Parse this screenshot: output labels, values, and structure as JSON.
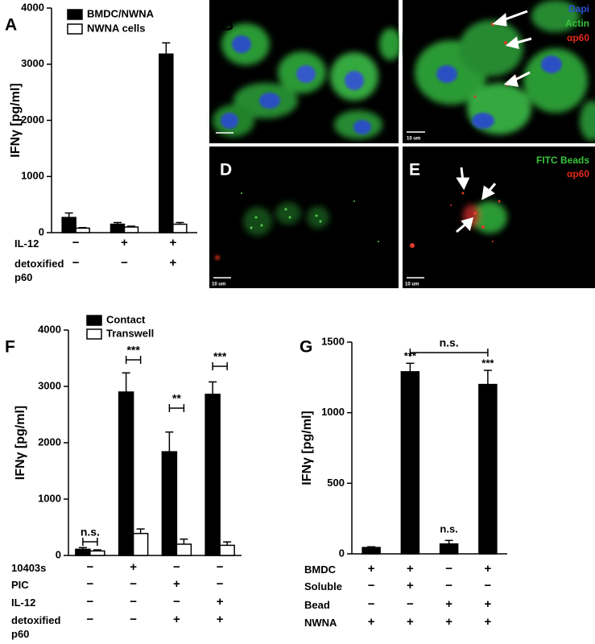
{
  "chart_data": [
    {
      "type": "bar",
      "panel": "A",
      "y_label": "IFNγ [pg/ml]",
      "ylim": [
        0,
        4000
      ],
      "yticks": [
        0,
        1000,
        2000,
        3000,
        4000
      ],
      "series": [
        {
          "name": "BMDC/NWNA",
          "color": "#000000",
          "values": [
            270,
            150,
            3180
          ],
          "errors": [
            80,
            30,
            200
          ]
        },
        {
          "name": "NWNA cells",
          "color": "#ffffff",
          "values": [
            80,
            100,
            150
          ],
          "errors": [
            10,
            15,
            30
          ]
        }
      ],
      "conditions": [
        {
          "label": "IL-12",
          "values": [
            "−",
            "+",
            "+"
          ]
        },
        {
          "label": "detoxified p60",
          "values": [
            "−",
            "−",
            "+"
          ]
        }
      ]
    },
    {
      "type": "bar",
      "panel": "F",
      "y_label": "IFNγ [pg/ml]",
      "ylim": [
        0,
        4000
      ],
      "yticks": [
        0,
        1000,
        2000,
        3000,
        4000
      ],
      "series": [
        {
          "name": "Contact",
          "color": "#000000",
          "values": [
            110,
            2900,
            1840,
            2860
          ],
          "errors": [
            30,
            340,
            350,
            220
          ]
        },
        {
          "name": "Transwell",
          "color": "#ffffff",
          "values": [
            80,
            390,
            200,
            180
          ],
          "errors": [
            20,
            80,
            90,
            60
          ]
        }
      ],
      "annotations": [
        "n.s.",
        "***",
        "**",
        "***"
      ],
      "conditions": [
        {
          "label": "10403s",
          "values": [
            "−",
            "+",
            "−",
            "−"
          ]
        },
        {
          "label": "PIC",
          "values": [
            "−",
            "−",
            "+",
            "−"
          ]
        },
        {
          "label": "IL-12",
          "values": [
            "−",
            "−",
            "−",
            "+"
          ]
        },
        {
          "label": "detoxified p60",
          "values": [
            "−",
            "−",
            "+",
            "+"
          ]
        }
      ]
    },
    {
      "type": "bar",
      "panel": "G",
      "y_label": "IFNγ [pg/ml]",
      "ylim": [
        0,
        1500
      ],
      "yticks": [
        0,
        500,
        1000,
        1500
      ],
      "series": [
        {
          "color": "#000000",
          "values": [
            45,
            1290,
            70,
            1200
          ],
          "errors": [
            5,
            60,
            25,
            100
          ]
        }
      ],
      "annotations": [
        "***",
        "n.s.",
        "***",
        "n.s."
      ],
      "conditions": [
        {
          "label": "BMDC",
          "values": [
            "+",
            "+",
            "−",
            "+"
          ]
        },
        {
          "label": "Soluble",
          "values": [
            "−",
            "+",
            "−",
            "−"
          ]
        },
        {
          "label": "Bead",
          "values": [
            "−",
            "−",
            "+",
            "+"
          ]
        },
        {
          "label": "NWNA",
          "values": [
            "+",
            "+",
            "+",
            "+"
          ]
        }
      ]
    }
  ],
  "images": [
    {
      "panel": "B"
    },
    {
      "panel": "C",
      "legend": [
        "Dapi",
        "Actin",
        "αp60"
      ],
      "scale_bar": "10 um"
    },
    {
      "panel": "D",
      "scale_bar": "10 um"
    },
    {
      "panel": "E",
      "legend": [
        "FITC Beads",
        "αp60"
      ],
      "scale_bar": "10 um"
    }
  ]
}
